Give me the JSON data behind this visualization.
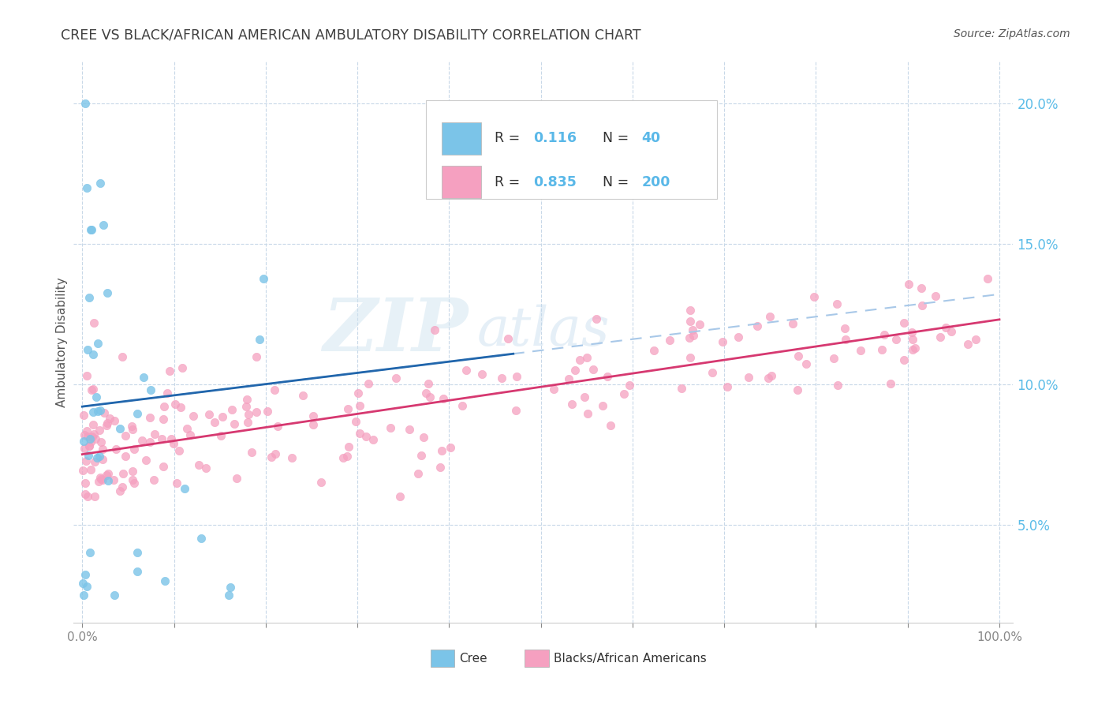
{
  "title": "CREE VS BLACK/AFRICAN AMERICAN AMBULATORY DISABILITY CORRELATION CHART",
  "source": "Source: ZipAtlas.com",
  "ylabel": "Ambulatory Disability",
  "cree_color": "#7bc4e8",
  "black_color": "#f5a0c0",
  "cree_line_color": "#2166ac",
  "black_line_color": "#d63870",
  "cree_dash_color": "#a8c8e8",
  "legend_R1": "0.116",
  "legend_N1": "40",
  "legend_R2": "0.835",
  "legend_N2": "200",
  "watermark_zip": "ZIP",
  "watermark_atlas": "atlas",
  "background_color": "#ffffff",
  "grid_color": "#c8d8e8",
  "tick_color_y": "#5bbce8",
  "title_color": "#404040",
  "legend_text_color": "#333333",
  "legend_num_color": "#5ab8e8"
}
